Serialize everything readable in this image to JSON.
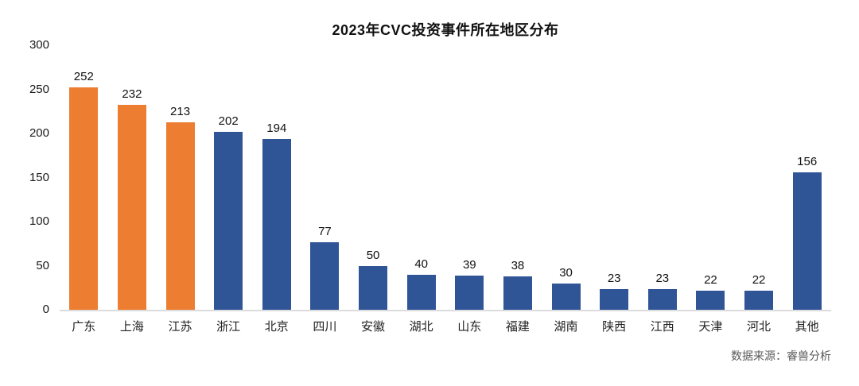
{
  "chart_data": {
    "type": "bar",
    "title": "2023年CVC投资事件所在地区分布",
    "categories": [
      "广东",
      "上海",
      "江苏",
      "浙江",
      "北京",
      "四川",
      "安徽",
      "湖北",
      "山东",
      "福建",
      "湖南",
      "陕西",
      "江西",
      "天津",
      "河北",
      "其他"
    ],
    "values": [
      252,
      232,
      213,
      202,
      194,
      77,
      50,
      40,
      39,
      38,
      30,
      23,
      23,
      22,
      22,
      156
    ],
    "bar_colors": [
      "#ED7D31",
      "#ED7D31",
      "#ED7D31",
      "#2F5597",
      "#2F5597",
      "#2F5597",
      "#2F5597",
      "#2F5597",
      "#2F5597",
      "#2F5597",
      "#2F5597",
      "#2F5597",
      "#2F5597",
      "#2F5597",
      "#2F5597",
      "#2F5597"
    ],
    "xlabel": "",
    "ylabel": "",
    "ylim": [
      0,
      300
    ],
    "yticks": [
      0,
      50,
      100,
      150,
      200,
      250,
      300
    ],
    "grid": "off",
    "legend": "none",
    "data_labels": "above bars",
    "source": "数据来源：睿兽分析"
  },
  "colors": {
    "highlight_orange": "#ED7D31",
    "primary_blue": "#2F5597",
    "axis_line": "#dcdcdc",
    "title_text": "#111111",
    "label_text": "#222222",
    "source_text": "#595959",
    "background": "#ffffff"
  }
}
